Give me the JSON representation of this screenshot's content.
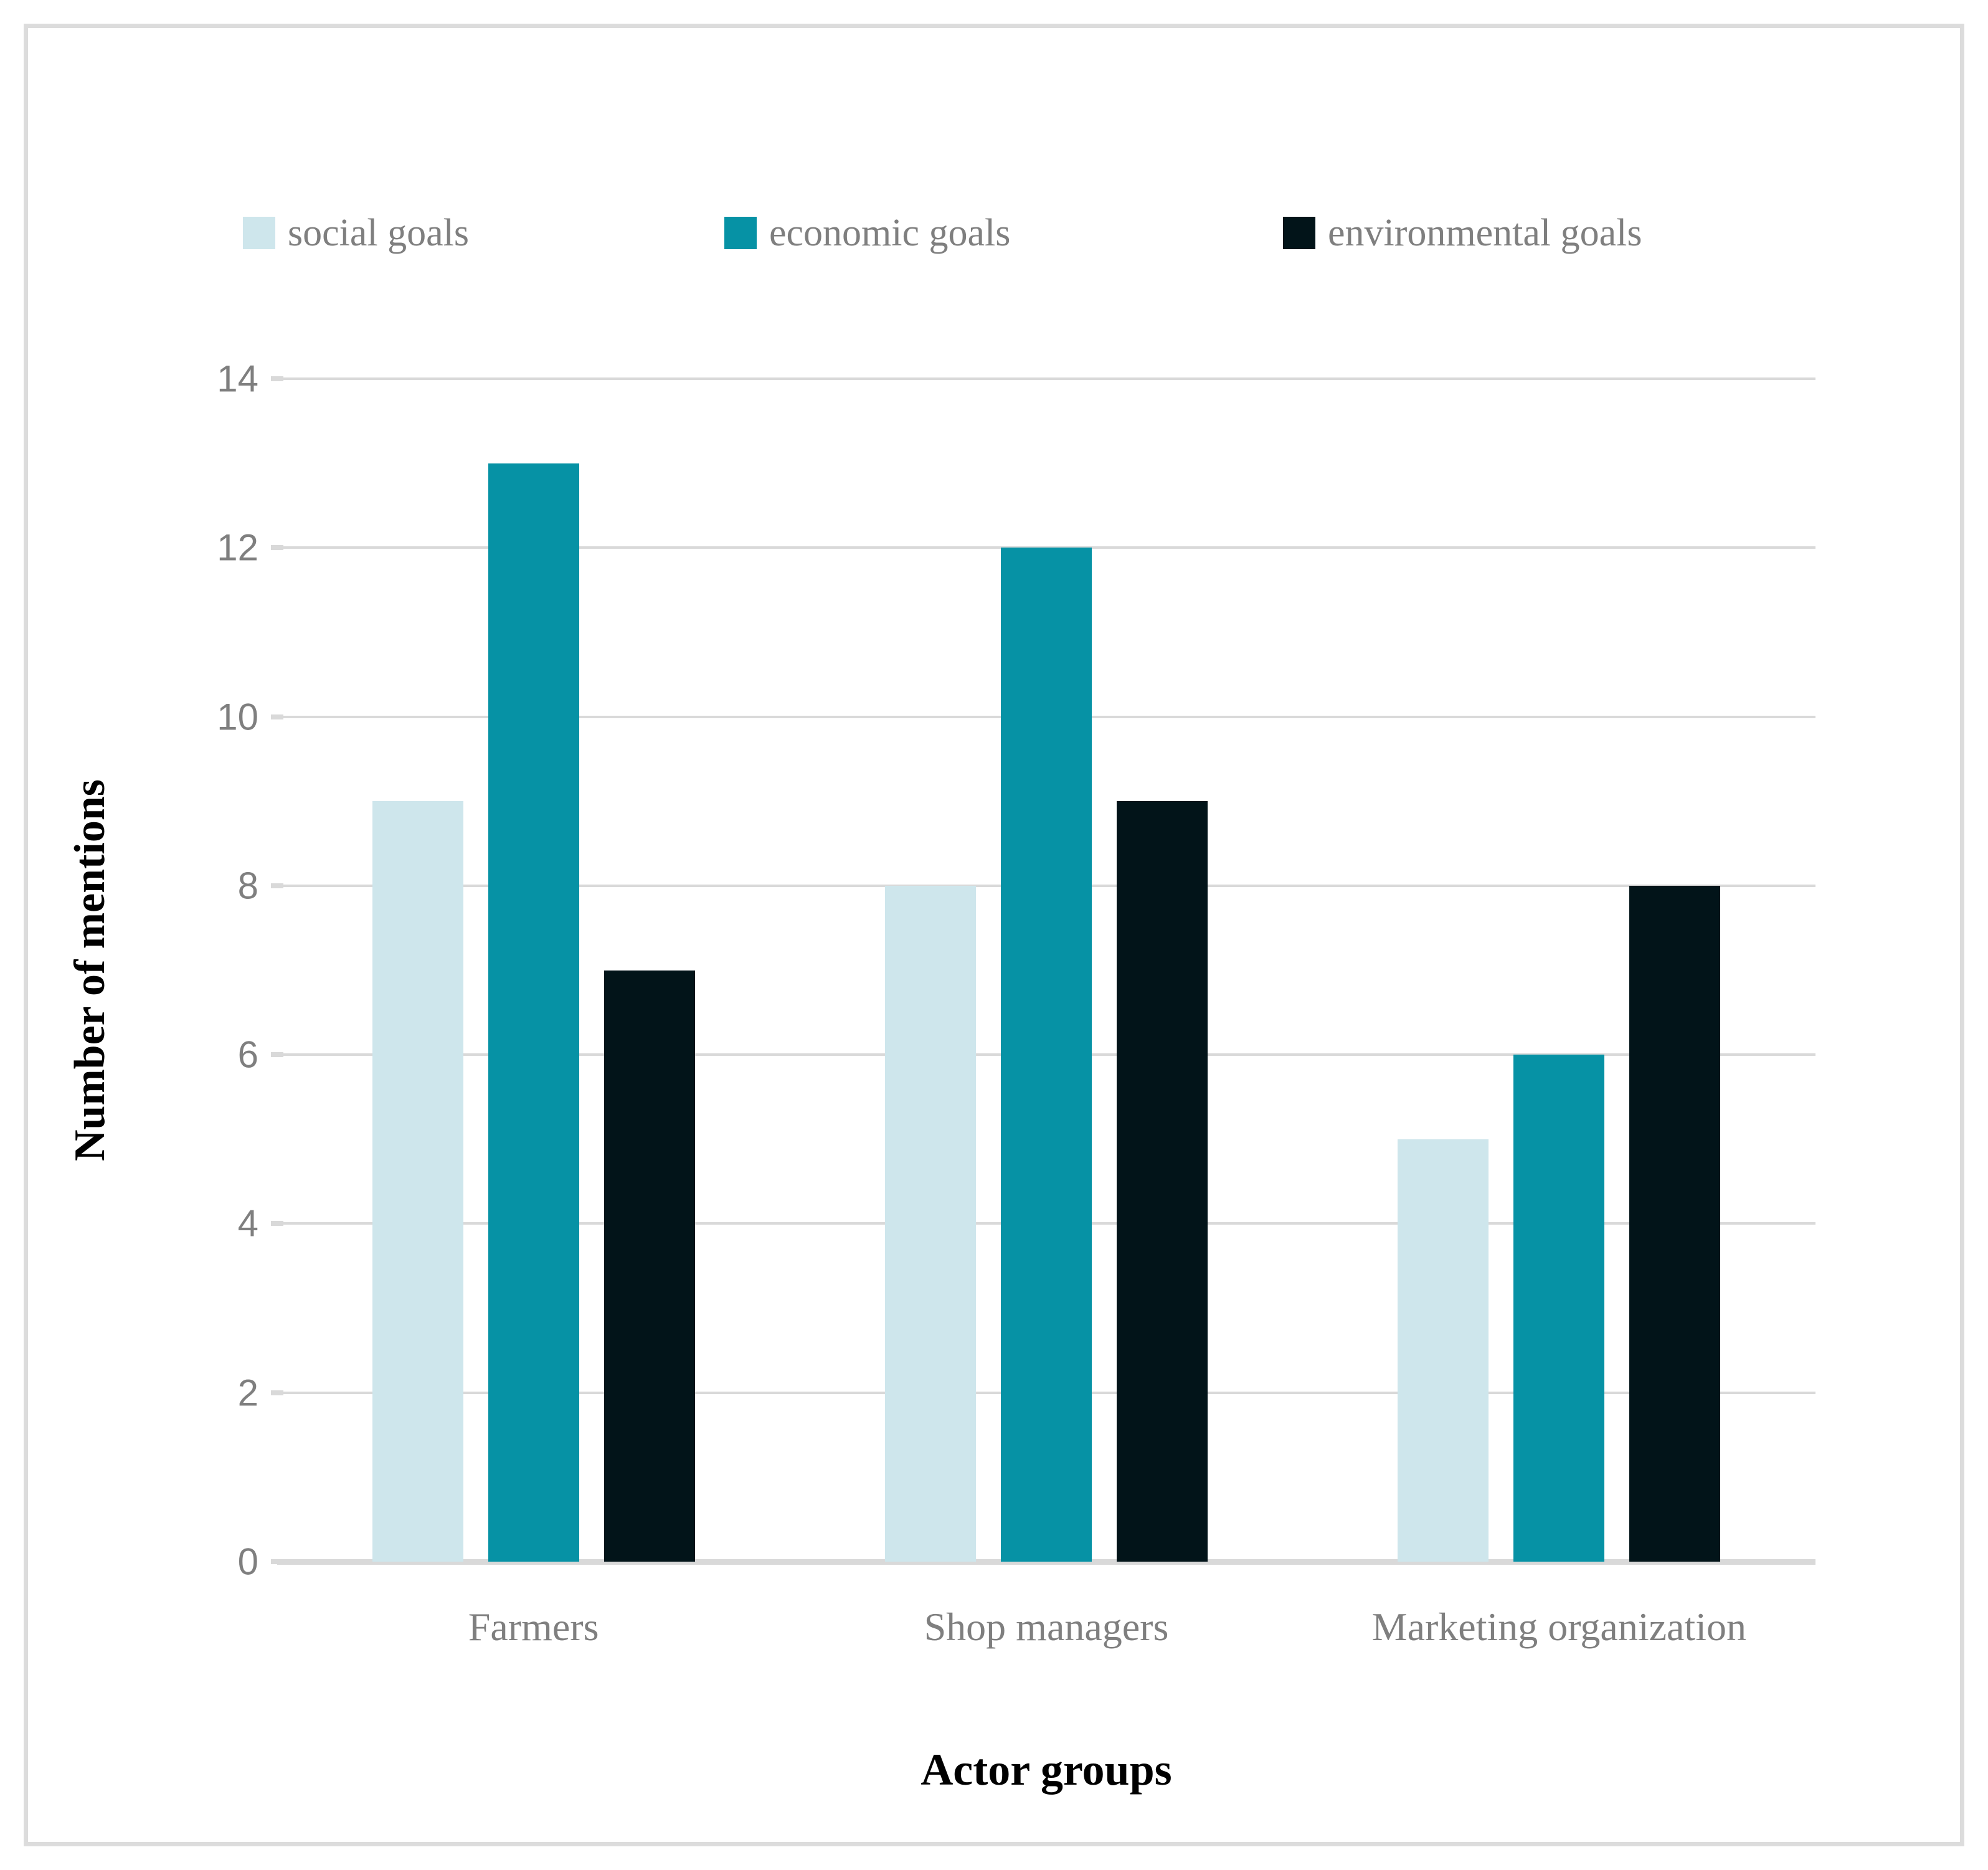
{
  "chart_data": {
    "type": "bar",
    "categories": [
      "Farmers",
      "Shop managers",
      "Marketing organization"
    ],
    "series": [
      {
        "name": "social goals",
        "color": "#cee6ec",
        "values": [
          9,
          8,
          5
        ]
      },
      {
        "name": "economic goals",
        "color": "#0692a5",
        "values": [
          13,
          12,
          6
        ]
      },
      {
        "name": "environmental goals",
        "color": "#021419",
        "values": [
          7,
          9,
          8
        ]
      }
    ],
    "title": "",
    "xlabel": "Actor groups",
    "ylabel": "Number of mentions",
    "ylim": [
      0,
      14
    ],
    "yticks": [
      14,
      12,
      10,
      8,
      6,
      4,
      2,
      0
    ],
    "grid": true,
    "legend_position": "top",
    "styles": {
      "gridline_color": "#d9d9d9",
      "axis_line_color": "#d9d9d9",
      "tick_text_color": "#7f7f7f",
      "label_text_color": "#7f7f7f",
      "title_text_color": "#000000",
      "frame_border_color": "#dcdcdc",
      "background": "#ffffff"
    }
  }
}
